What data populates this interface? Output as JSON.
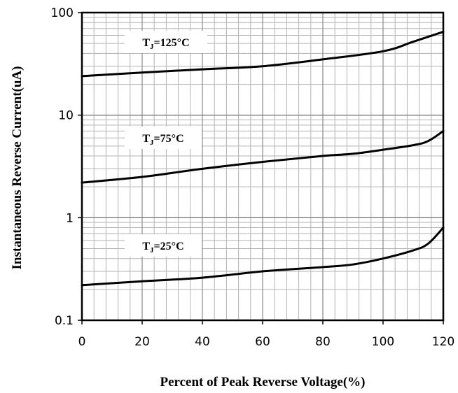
{
  "chart_data": {
    "type": "line",
    "title": "",
    "xlabel": "Percent of Peak Reverse Voltage(%)",
    "ylabel": "Instantaneous Reverse Current(uA)",
    "x_scale": "linear",
    "y_scale": "log",
    "xlim": [
      0,
      120
    ],
    "ylim": [
      0.1,
      100
    ],
    "x_ticks": [
      "0",
      "20",
      "40",
      "60",
      "80",
      "100",
      "120"
    ],
    "y_ticks": [
      "0.1",
      "1",
      "10",
      "100"
    ],
    "grid": true,
    "legend": "none",
    "line_color": "#000000",
    "series": [
      {
        "name_main": "T",
        "name_sub": "J",
        "name_rest": "=125°C",
        "x": [
          0,
          20,
          40,
          60,
          80,
          100,
          110,
          120
        ],
        "y": [
          24,
          26,
          28,
          30,
          35,
          42,
          52,
          65
        ]
      },
      {
        "name_main": "T",
        "name_sub": "J",
        "name_rest": "=75°C",
        "x": [
          0,
          20,
          40,
          60,
          80,
          90,
          100,
          110,
          115,
          120
        ],
        "y": [
          2.2,
          2.5,
          3.0,
          3.5,
          4.0,
          4.2,
          4.6,
          5.1,
          5.6,
          7.0
        ]
      },
      {
        "name_main": "T",
        "name_sub": "J",
        "name_rest": "=25°C",
        "x": [
          0,
          20,
          40,
          60,
          80,
          90,
          100,
          110,
          115,
          120
        ],
        "y": [
          0.22,
          0.24,
          0.26,
          0.3,
          0.33,
          0.35,
          0.4,
          0.48,
          0.56,
          0.8
        ]
      }
    ]
  }
}
